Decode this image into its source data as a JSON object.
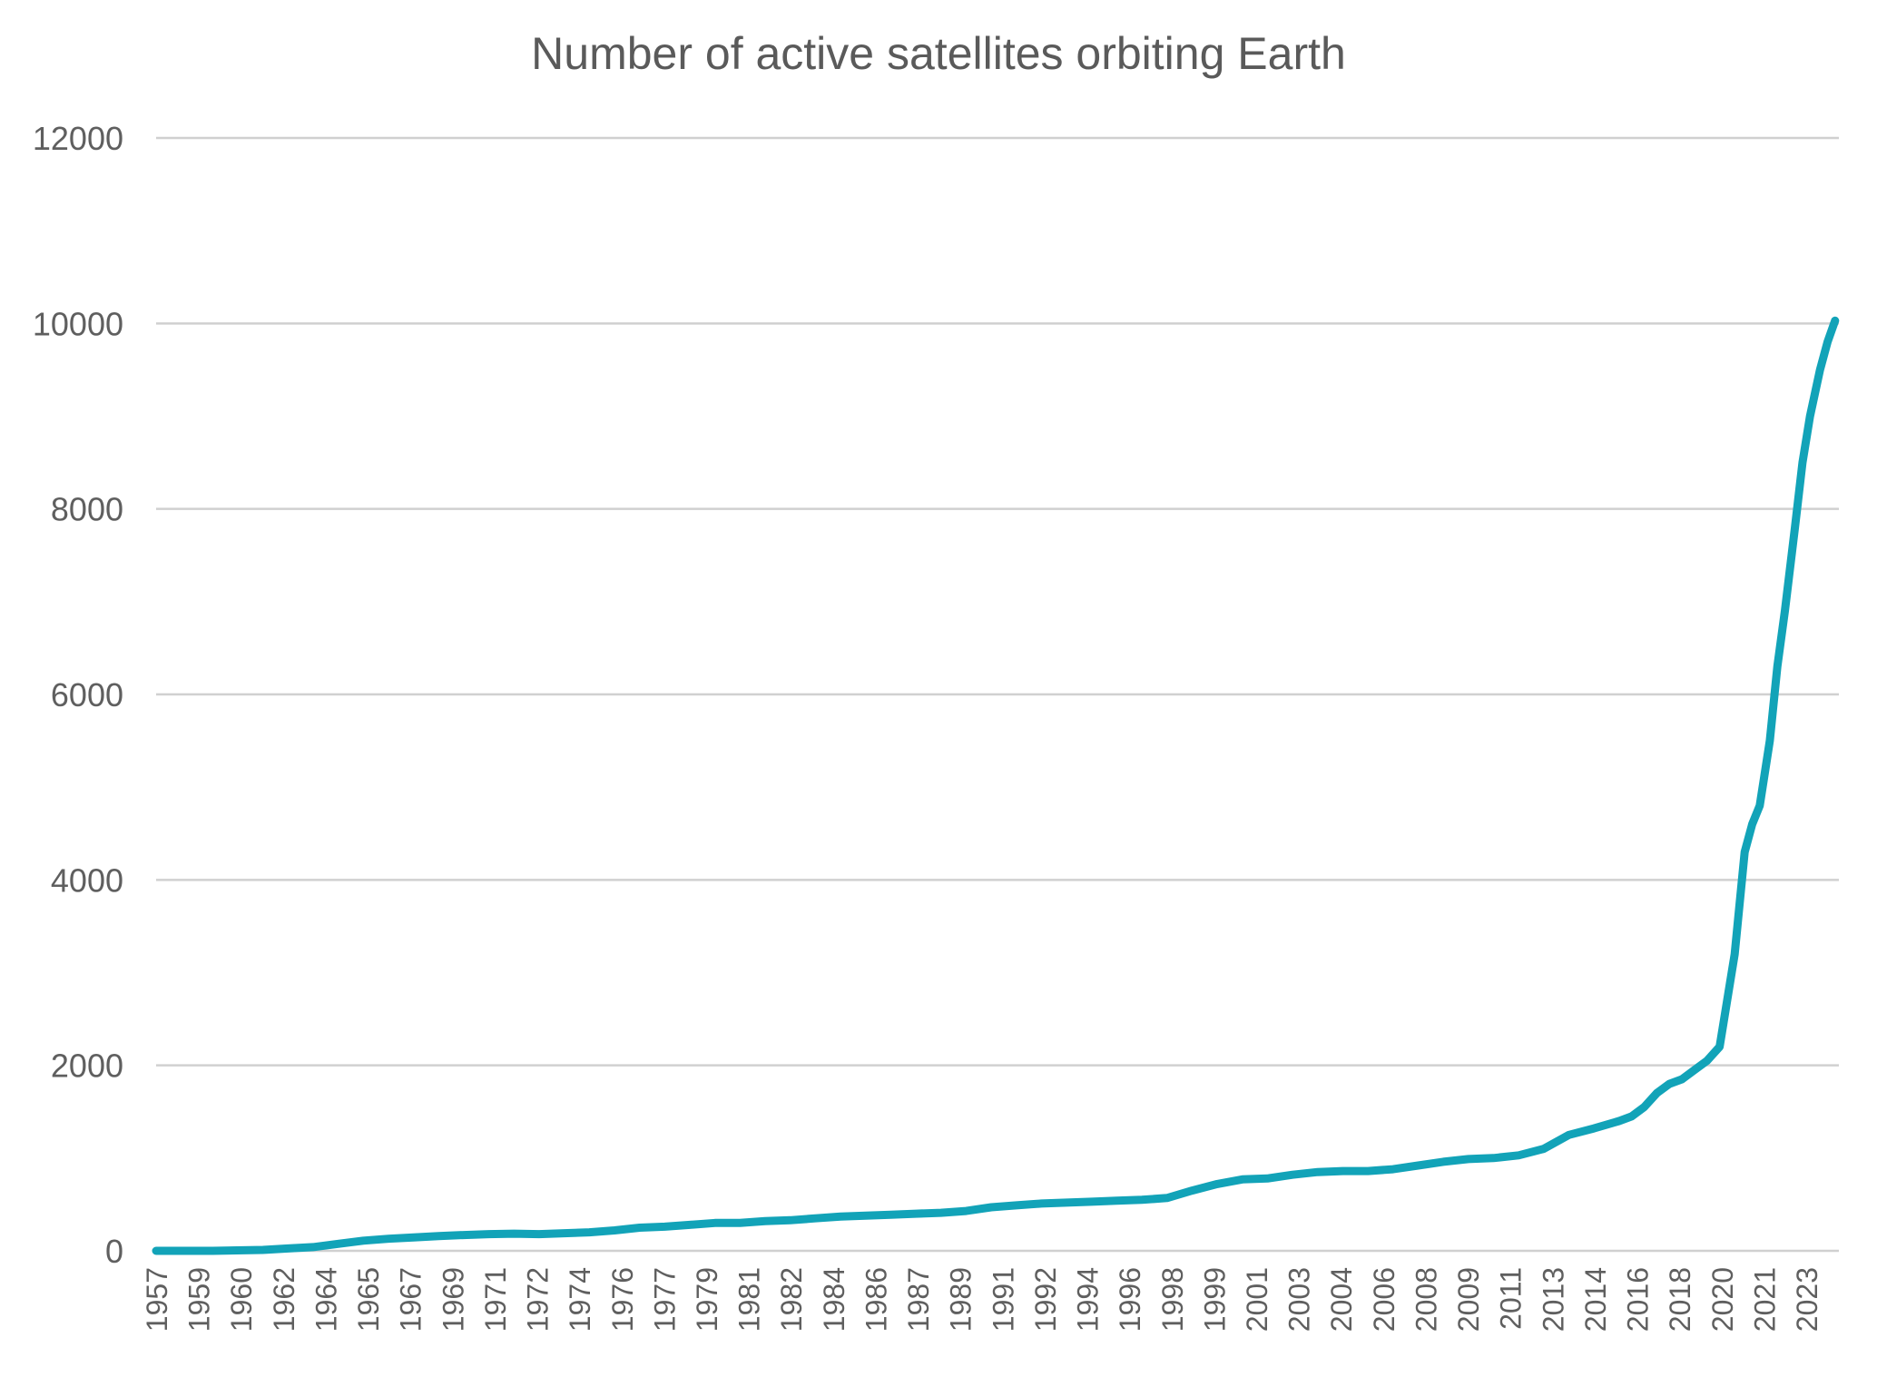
{
  "chart_data": {
    "type": "line",
    "title": "Number of active satellites orbiting Earth",
    "xlabel": "",
    "ylabel": "",
    "ylim": [
      0,
      12000
    ],
    "yticks": [
      0,
      2000,
      4000,
      6000,
      8000,
      10000,
      12000
    ],
    "xlim": [
      1957.75,
      2024.75
    ],
    "x_tick_labels": [
      "1957",
      "1959",
      "1960",
      "1962",
      "1964",
      "1965",
      "1967",
      "1969",
      "1971",
      "1972",
      "1974",
      "1976",
      "1977",
      "1979",
      "1981",
      "1982",
      "1984",
      "1986",
      "1987",
      "1989",
      "1991",
      "1992",
      "1994",
      "1996",
      "1998",
      "1999",
      "2001",
      "2003",
      "2004",
      "2006",
      "2008",
      "2009",
      "2011",
      "2013",
      "2014",
      "2016",
      "2018",
      "2020",
      "2021",
      "2023"
    ],
    "grid": true,
    "legend": "none",
    "colors": {
      "line": "#12a3b8",
      "grid": "#d0d0d0",
      "text": "#5f5f5f"
    },
    "series": [
      {
        "x": [
          1957.75,
          1960,
          1962,
          1963,
          1964,
          1965,
          1966,
          1967,
          1968,
          1969,
          1970,
          1971,
          1972,
          1973,
          1974,
          1975,
          1976,
          1977,
          1978,
          1979,
          1980,
          1981,
          1982,
          1983,
          1984,
          1985,
          1986,
          1987,
          1988,
          1989,
          1990,
          1991,
          1992,
          1993,
          1994,
          1995,
          1996,
          1997,
          1998,
          1999,
          2000,
          2001,
          2002,
          2003,
          2004,
          2005,
          2006,
          2007,
          2008,
          2009,
          2010,
          2011,
          2012,
          2013,
          2014,
          2015,
          2016,
          2016.5,
          2017,
          2017.5,
          2018,
          2018.5,
          2019,
          2019.5,
          2020,
          2020.3,
          2020.6,
          2021,
          2021.3,
          2021.6,
          2022,
          2022.3,
          2022.6,
          2023,
          2023.3,
          2023.6,
          2024,
          2024.3,
          2024.6
        ],
        "y": [
          0,
          0,
          10,
          25,
          40,
          75,
          110,
          130,
          145,
          160,
          170,
          180,
          185,
          180,
          190,
          200,
          220,
          250,
          260,
          280,
          300,
          300,
          320,
          330,
          350,
          370,
          380,
          390,
          400,
          410,
          430,
          470,
          490,
          510,
          520,
          530,
          540,
          550,
          570,
          650,
          720,
          770,
          780,
          820,
          850,
          860,
          860,
          880,
          920,
          960,
          990,
          1000,
          1030,
          1100,
          1250,
          1320,
          1400,
          1450,
          1550,
          1700,
          1800,
          1850,
          1950,
          2050,
          2200,
          2700,
          3200,
          4300,
          4600,
          4800,
          5500,
          6300,
          6900,
          7800,
          8500,
          9000,
          9500,
          9800,
          10030
        ]
      }
    ]
  }
}
